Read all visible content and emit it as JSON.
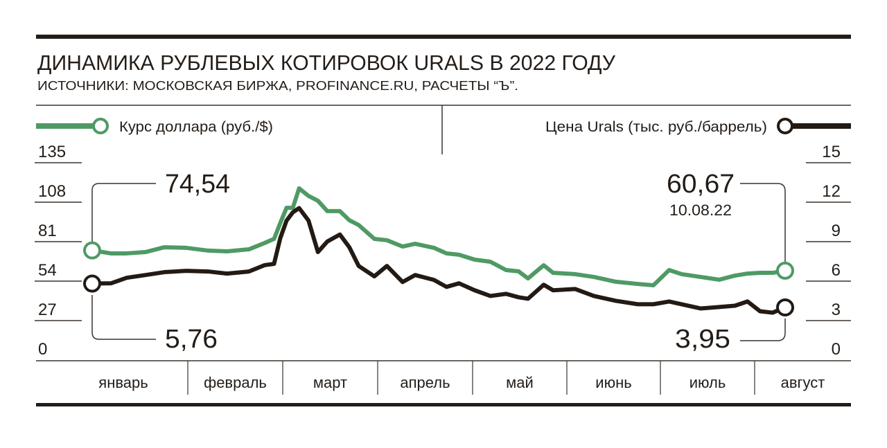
{
  "chart_data": {
    "type": "line",
    "title": "ДИНАМИКА РУБЛЕВЫХ КОТИРОВОК URALS В 2022 ГОДУ",
    "subtitle": "ИСТОЧНИКИ: МОСКОВСКАЯ БИРЖА, PROFINANCE.RU, РАСЧЕТЫ “Ъ”.",
    "grid": false,
    "legend_placement": "top",
    "x_categories": [
      "январь",
      "февраль",
      "март",
      "апрель",
      "май",
      "июнь",
      "июль",
      "август"
    ],
    "left_axis": {
      "ticks": [
        "135",
        "108",
        "81",
        "54",
        "27",
        "0"
      ],
      "ylim": [
        0,
        135
      ]
    },
    "right_axis": {
      "ticks": [
        "15",
        "12",
        "9",
        "6",
        "3",
        "0"
      ],
      "ylim": [
        0,
        15
      ]
    },
    "dates": [
      "2022-01-01",
      "2022-01-07",
      "2022-01-12",
      "2022-01-18",
      "2022-01-24",
      "2022-01-31",
      "2022-02-07",
      "2022-02-13",
      "2022-02-20",
      "2022-02-25",
      "2022-02-28",
      "2022-03-02",
      "2022-03-04",
      "2022-03-06",
      "2022-03-08",
      "2022-03-11",
      "2022-03-14",
      "2022-03-17",
      "2022-03-21",
      "2022-03-24",
      "2022-03-27",
      "2022-04-01",
      "2022-04-05",
      "2022-04-10",
      "2022-04-14",
      "2022-04-20",
      "2022-04-24",
      "2022-04-28",
      "2022-05-03",
      "2022-05-08",
      "2022-05-13",
      "2022-05-17",
      "2022-05-20",
      "2022-05-25",
      "2022-05-28",
      "2022-06-04",
      "2022-06-10",
      "2022-06-17",
      "2022-06-24",
      "2022-06-29",
      "2022-07-04",
      "2022-07-08",
      "2022-07-14",
      "2022-07-20",
      "2022-07-25",
      "2022-07-29",
      "2022-08-02",
      "2022-08-06",
      "2022-08-10"
    ],
    "series": [
      {
        "name": "Курс доллара (руб./$)",
        "axis": "left",
        "color": "#4f9a64",
        "values": [
          74.54,
          72.5,
          72.5,
          73.4,
          76.7,
          76.3,
          74.4,
          73.9,
          75.3,
          79.6,
          82.4,
          93.3,
          103.7,
          103.7,
          117.0,
          111.8,
          108.5,
          101.4,
          101.4,
          95.2,
          91.9,
          82.4,
          81.5,
          77.2,
          79.1,
          76.3,
          72.5,
          71.6,
          68.2,
          66.8,
          61.1,
          60.2,
          55.4,
          64.4,
          59.2,
          58.3,
          56.4,
          53.1,
          51.6,
          50.7,
          61.1,
          58.3,
          56.4,
          54.5,
          57.3,
          58.7,
          59.2,
          59.2,
          60.67
        ]
      },
      {
        "name": "Цена Urals (тыс. руб./баррель)",
        "axis": "right",
        "color": "#231a14",
        "values": [
          5.76,
          5.78,
          6.2,
          6.41,
          6.63,
          6.73,
          6.68,
          6.52,
          6.68,
          7.16,
          7.26,
          9.22,
          10.55,
          11.18,
          11.5,
          10.55,
          8.16,
          8.96,
          9.49,
          8.53,
          7.1,
          6.31,
          7.1,
          5.88,
          6.41,
          6.04,
          5.51,
          5.78,
          5.25,
          4.82,
          4.98,
          4.72,
          4.61,
          5.67,
          5.25,
          5.35,
          4.82,
          4.45,
          4.19,
          4.19,
          4.4,
          4.19,
          3.87,
          3.98,
          4.08,
          4.4,
          3.66,
          3.55,
          3.95
        ]
      }
    ],
    "annotations": {
      "usd_start": "74,54",
      "urals_start": "5,76",
      "usd_end": "60,67",
      "end_date": "10.08.22",
      "urals_end": "3,95"
    }
  }
}
